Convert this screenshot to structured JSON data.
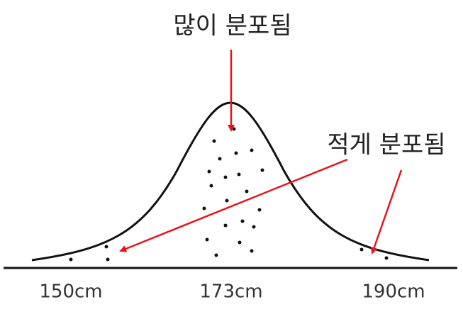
{
  "annotations": {
    "high": "많이 분포됨",
    "low": "적게 분포됨"
  },
  "x_labels": [
    "150cm",
    "173cm",
    "190cm"
  ]
}
